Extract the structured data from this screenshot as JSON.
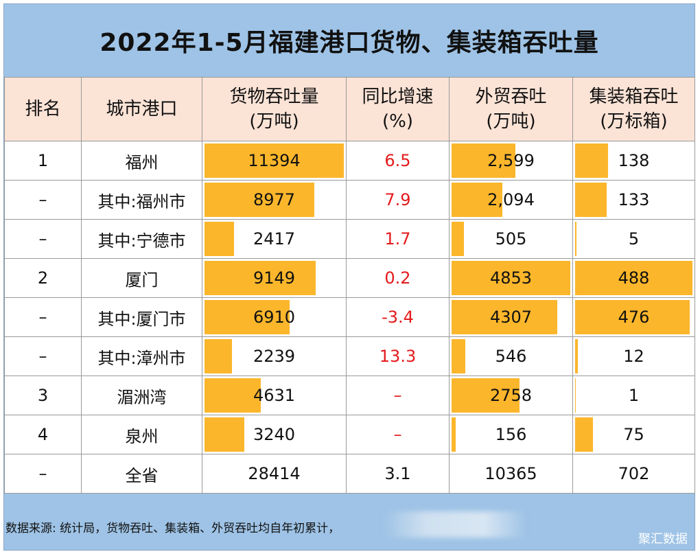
{
  "title": "2022年1-5月福建港口货物、集装箱吞吐量",
  "headers": [
    {
      "l1": "排名",
      "l2": ""
    },
    {
      "l1": "城市港口",
      "l2": ""
    },
    {
      "l1": "货物吞吐量",
      "l2": "(万吨)"
    },
    {
      "l1": "同比增速",
      "l2": "(%)"
    },
    {
      "l1": "外贸吞吐",
      "l2": "(万吨)"
    },
    {
      "l1": "集装箱吞吐",
      "l2": "(万标箱)"
    }
  ],
  "rows": [
    {
      "rank": "1",
      "port": "福州",
      "cargo": "11394",
      "growth": "6.5",
      "foreign": "2,599",
      "container": "138",
      "cargo_bar": 1.0,
      "foreign_bar": 0.54,
      "container_bar": 0.28
    },
    {
      "rank": "–",
      "port": "其中:福州市",
      "cargo": "8977",
      "growth": "7.9",
      "foreign": "2,094",
      "container": "133",
      "cargo_bar": 0.79,
      "foreign_bar": 0.43,
      "container_bar": 0.27
    },
    {
      "rank": "–",
      "port": "其中:宁德市",
      "cargo": "2417",
      "growth": "1.7",
      "foreign": "505",
      "container": "5",
      "cargo_bar": 0.21,
      "foreign_bar": 0.104,
      "container_bar": 0.01
    },
    {
      "rank": "2",
      "port": "厦门",
      "cargo": "9149",
      "growth": "0.2",
      "foreign": "4853",
      "container": "488",
      "cargo_bar": 0.8,
      "foreign_bar": 1.0,
      "container_bar": 1.0
    },
    {
      "rank": "–",
      "port": "其中:厦门市",
      "cargo": "6910",
      "growth": "-3.4",
      "foreign": "4307",
      "container": "476",
      "cargo_bar": 0.61,
      "foreign_bar": 0.89,
      "container_bar": 0.975
    },
    {
      "rank": "–",
      "port": "其中:漳州市",
      "cargo": "2239",
      "growth": "13.3",
      "foreign": "546",
      "container": "12",
      "cargo_bar": 0.197,
      "foreign_bar": 0.113,
      "container_bar": 0.025
    },
    {
      "rank": "3",
      "port": "湄洲湾",
      "cargo": "4631",
      "growth": "–",
      "foreign": "2758",
      "container": "1",
      "cargo_bar": 0.406,
      "foreign_bar": 0.57,
      "container_bar": 0.002
    },
    {
      "rank": "4",
      "port": "泉州",
      "cargo": "3240",
      "growth": "–",
      "foreign": "156",
      "container": "75",
      "cargo_bar": 0.284,
      "foreign_bar": 0.032,
      "container_bar": 0.154
    },
    {
      "rank": "–",
      "port": "全省",
      "cargo": "28414",
      "growth": "3.1",
      "foreign": "10365",
      "container": "702",
      "cargo_bar": 0,
      "foreign_bar": 0,
      "container_bar": 0
    }
  ],
  "footer": {
    "source": "数据来源: 统计局，货物吞吐、集装箱、外贸吞吐均自年初累计，",
    "brand": "聚汇数据"
  },
  "colors": {
    "bar": "#fbb62b",
    "header_bg": "#fbe3d6",
    "frame_bg": "#9ec3e6",
    "negative_text": "#e41a1c"
  }
}
